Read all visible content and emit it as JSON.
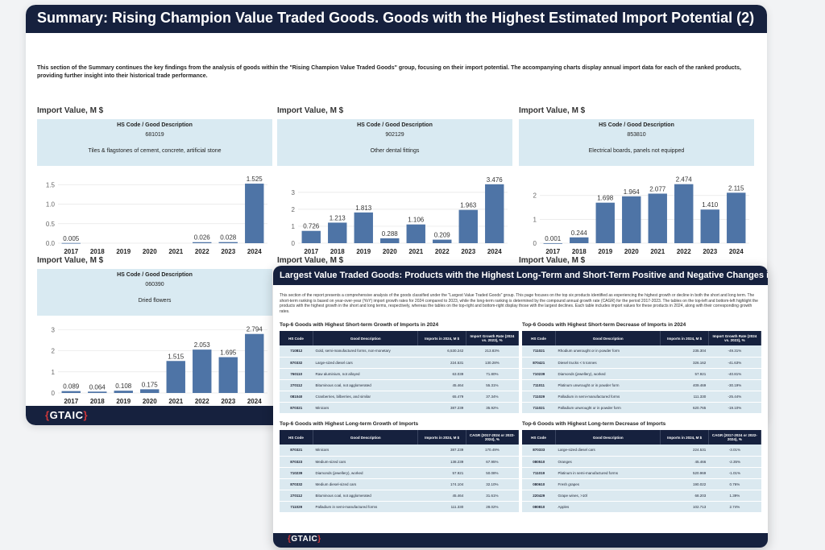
{
  "back": {
    "title": "Summary: Rising Champion Value Traded Goods. Goods with the Highest Estimated Import Potential (2)",
    "intro": "This section of the Summary continues the key findings from the analysis of goods within the \"Rising Champion Value Traded Goods\" group, focusing on their import potential. The accompanying charts display annual import data for each of the ranked products, providing further insight into their historical trade performance.",
    "logo_brace_open": "{",
    "logo_text": "GTAIC",
    "logo_brace_close": "}",
    "bar_color": "#4e74a6",
    "panels": [
      {
        "title": "Import Value, M $",
        "hs_label": "HS Code / Good Description",
        "hs_code": "681019",
        "desc": "Tiles & flagstones of cement, concrete, artificial stone"
      },
      {
        "title": "Import Value, M $",
        "hs_label": "HS Code / Good Description",
        "hs_code": "902129",
        "desc": "Other dental fittings"
      },
      {
        "title": "Import Value, M $",
        "hs_label": "HS Code / Good Description",
        "hs_code": "853810",
        "desc": "Electrical boards, panels not equipped"
      },
      {
        "title": "Import Value, M $",
        "hs_label": "HS Code / Good Description",
        "hs_code": "060390",
        "desc": "Dried flowers"
      },
      {
        "title": "Import Value, M $"
      },
      {
        "title": "Import Value, M $"
      }
    ]
  },
  "chart_data": [
    {
      "type": "bar",
      "title": "Import Value, M $",
      "categories": [
        "2017",
        "2018",
        "2019",
        "2020",
        "2021",
        "2022",
        "2023",
        "2024"
      ],
      "values": [
        0.005,
        null,
        null,
        null,
        null,
        0.026,
        0.028,
        1.525
      ],
      "labels": [
        "0.005",
        "",
        "",
        "",
        "",
        "0.026",
        "0.028",
        "1.525"
      ],
      "yticks": [
        0.0,
        0.5,
        1.0,
        1.5
      ],
      "ytick_labels": [
        "0.0",
        "0.5",
        "1.0",
        "1.5"
      ],
      "ylim": [
        0,
        1.65
      ]
    },
    {
      "type": "bar",
      "title": "Import Value, M $",
      "categories": [
        "2017",
        "2018",
        "2019",
        "2020",
        "2021",
        "2022",
        "2023",
        "2024"
      ],
      "values": [
        0.726,
        1.213,
        1.813,
        0.288,
        1.106,
        0.209,
        1.963,
        3.476
      ],
      "labels": [
        "0.726",
        "1.213",
        "1.813",
        "0.288",
        "1.106",
        "0.209",
        "1.963",
        "3.476"
      ],
      "yticks": [
        0,
        1,
        2,
        3
      ],
      "ytick_labels": [
        "0",
        "1",
        "2",
        "3"
      ],
      "ylim": [
        0,
        3.8
      ]
    },
    {
      "type": "bar",
      "title": "Import Value, M $",
      "categories": [
        "2017",
        "2018",
        "2019",
        "2020",
        "2021",
        "2022",
        "2023",
        "2024"
      ],
      "values": [
        0.001,
        0.244,
        1.698,
        1.964,
        2.077,
        2.474,
        1.41,
        2.115
      ],
      "labels": [
        "0.001",
        "0.244",
        "1.698",
        "1.964",
        "2.077",
        "2.474",
        "1.410",
        "2.115"
      ],
      "yticks": [
        0,
        1,
        2
      ],
      "ytick_labels": [
        "0",
        "1",
        "2"
      ],
      "ylim": [
        0,
        2.7
      ]
    },
    {
      "type": "bar",
      "title": "Import Value, M $",
      "categories": [
        "2017",
        "2018",
        "2019",
        "2020",
        "2021",
        "2022",
        "2023",
        "2024"
      ],
      "values": [
        0.089,
        0.064,
        0.108,
        0.175,
        1.515,
        2.053,
        1.695,
        2.794
      ],
      "labels": [
        "0.089",
        "0.064",
        "0.108",
        "0.175",
        "1.515",
        "2.053",
        "1.695",
        "2.794"
      ],
      "yticks": [
        0,
        1,
        2,
        3
      ],
      "ytick_labels": [
        "0",
        "1",
        "2",
        "3"
      ],
      "ylim": [
        0,
        3.05
      ]
    }
  ],
  "front": {
    "title": "Largest Value Traded Goods: Products with the Highest Long-Term and Short-Term Positive and Negative Changes in Import Value",
    "intro": "This section of the report presents a comprehensive analysis of the goods classified under the \"Largest Value Traded Goods\" group. This page focuses on the top six products identified as experiencing the highest growth or decline in both the short and long term. The short-term ranking is based on year-over-year (YoY) import growth rates for 2024 compared to 2023, while the long-term ranking is determined by the compound annual growth rate (CAGR) for the period 2017-2023. The tables on the top-left and bottom-left highlight the products with the highest growth in the short and long terms, respectively, whereas the tables on the top-right and bottom-right display those with the largest declines. Each table includes import values for these products in 2024, along with their corresponding growth rates.",
    "logo_brace_open": "{",
    "logo_text": "GTAIC",
    "logo_brace_close": "}",
    "tables": [
      {
        "title": "Top-6 Goods with Highest Short-term Growth of Imports in 2024",
        "headers": [
          "HS Code",
          "Good Description",
          "Imports in 2024, M $",
          "Import Growth Rate (2024 vs. 2023), %"
        ],
        "rows": [
          [
            "710812",
            "Gold, semi-manufactured forms, non-monetary",
            "6,530.242",
            "213.83%"
          ],
          [
            "870332",
            "Large-sized diesel cars",
            "224.531",
            "130.28%"
          ],
          [
            "760110",
            "Raw aluminium, not alloyed",
            "63.039",
            "71.80%"
          ],
          [
            "270112",
            "Bituminous coal, not agglomerated",
            "45.464",
            "55.31%"
          ],
          [
            "081040",
            "Cranberries, bilberries, and similar",
            "65.479",
            "37.34%"
          ],
          [
            "870321",
            "Minicars",
            "387.239",
            "35.92%"
          ]
        ]
      },
      {
        "title": "Top-6 Goods with Highest Short-term Decrease of Imports in 2024",
        "headers": [
          "HS Code",
          "Good Description",
          "Imports in 2024, M $",
          "Import Growth Rate (2024 vs. 2023), %"
        ],
        "rows": [
          [
            "711021",
            "Rhodium unwrought or in powder form",
            "235.304",
            "-49.31%"
          ],
          [
            "870421",
            "Diesel trucks < 5 tonnes",
            "326.162",
            "-41.63%"
          ],
          [
            "710239",
            "Diamonds (jewellery), worked",
            "57.921",
            "-40.81%"
          ],
          [
            "711011",
            "Platinum unwrought or in powder form",
            "409.469",
            "-30.19%"
          ],
          [
            "711029",
            "Palladium in semi-manufactured forms",
            "111.330",
            "-25.44%"
          ],
          [
            "711021",
            "Palladium unwrought or in powder form",
            "620.765",
            "-19.10%"
          ]
        ]
      },
      {
        "title": "Top-6 Goods with Highest Long-term Growth of Imports",
        "headers": [
          "HS Code",
          "Good Description",
          "Imports in 2024, M $",
          "CAGR (2017-2024 or 2022-2024), %"
        ],
        "rows": [
          [
            "870321",
            "Minicars",
            "387.239",
            "170.49%"
          ],
          [
            "870323",
            "Medium-sized cars",
            "138.239",
            "67.95%"
          ],
          [
            "710239",
            "Diamonds (jewellery), worked",
            "57.921",
            "50.08%"
          ],
          [
            "870332",
            "Medium diesel-sized cars",
            "174.104",
            "32.10%"
          ],
          [
            "270112",
            "Bituminous coal, not agglomerated",
            "45.464",
            "31.61%"
          ],
          [
            "711029",
            "Palladium in semi-manufactured forms",
            "111.330",
            "28.02%"
          ]
        ]
      },
      {
        "title": "Top-6 Goods with Highest Long-term Decrease of Imports",
        "headers": [
          "HS Code",
          "Good Description",
          "Imports in 2024, M $",
          "CAGR (2017-2024 or 2022-2024), %"
        ],
        "rows": [
          [
            "870333",
            "Large-sized diesel cars",
            "224.531",
            "-3.01%"
          ],
          [
            "080510",
            "Oranges",
            "45.466",
            "-2.35%"
          ],
          [
            "711019",
            "Platinum in semi-manufactured forms",
            "520.969",
            "-1.01%"
          ],
          [
            "080610",
            "Fresh grapes",
            "190.022",
            "0.76%"
          ],
          [
            "220429",
            "Grape wines, >10l",
            "68.203",
            "1.39%"
          ],
          [
            "080810",
            "Apples",
            "102.713",
            "2.74%"
          ]
        ]
      }
    ]
  }
}
